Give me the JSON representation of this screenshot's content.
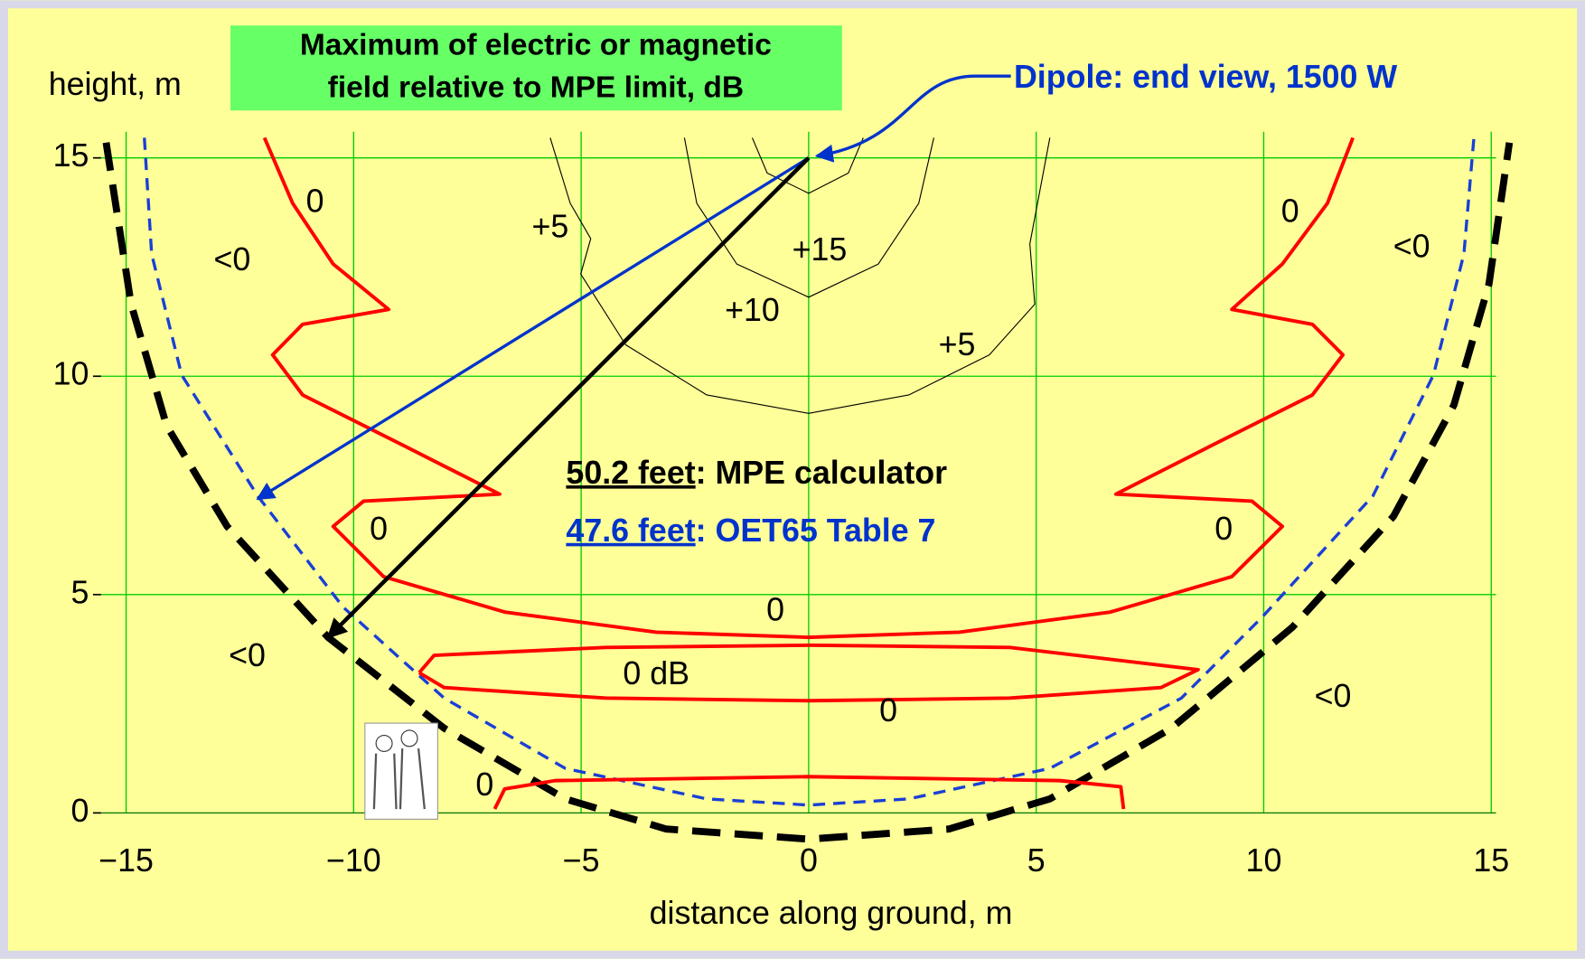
{
  "chart_data": {
    "type": "contour",
    "title": [
      "Maximum of electric or magnetic",
      "field relative to MPE limit, dB"
    ],
    "ylabel": "height, m",
    "xlabel": "distance along ground, m",
    "source_label": "Dipole: end view, 1500 W",
    "notes": [
      {
        "value": "50.2 feet",
        "text": ": MPE calculator",
        "color": "#000000"
      },
      {
        "value": "47.6 feet",
        "text": ": OET65 Table 7",
        "color": "#0033CC"
      }
    ],
    "xlim": [
      -15.55,
      15.55
    ],
    "ylim": [
      -0.7,
      15.6
    ],
    "xticks": [
      {
        "value": -15,
        "label": "−15"
      },
      {
        "value": -10,
        "label": "−10"
      },
      {
        "value": -5,
        "label": "−5"
      },
      0,
      5,
      10,
      15
    ],
    "yticks": [
      0,
      5,
      10,
      15
    ],
    "grid": true,
    "lines": [
      {
        "color": "#000000",
        "width": 7,
        "dash": "28 14",
        "x": [
          -15.44,
          -14.89,
          -14.11,
          -12.78,
          -10.56,
          -8.01,
          -5.35,
          -3.13,
          0,
          3.08,
          5.3,
          7.97,
          10.63,
          12.85,
          14.18,
          14.95,
          15.4
        ],
        "y": [
          15.35,
          11.65,
          8.87,
          6.56,
          4.02,
          1.94,
          0.32,
          -0.37,
          -0.6,
          -0.37,
          0.32,
          1.94,
          4.25,
          6.79,
          9.34,
          12.11,
          15.35
        ]
      },
      {
        "color": "#1a3fd6",
        "width": 3,
        "dash": "12 8",
        "x": [
          -14.6,
          -14.44,
          -13.78,
          -12.11,
          -10.23,
          -8.01,
          -5.35,
          -2.24,
          0,
          2.2,
          5.3,
          8.19,
          9.96,
          12.4,
          13.73,
          14.4,
          14.62
        ],
        "y": [
          15.46,
          12.8,
          10.03,
          7.26,
          4.71,
          2.63,
          1.02,
          0.32,
          0.18,
          0.32,
          1.02,
          2.63,
          4.48,
          7.26,
          10.03,
          12.8,
          15.46
        ]
      },
      {
        "color": "#ff0000",
        "width": 3.5,
        "dash": "none",
        "x": [
          -11.96,
          -11.34,
          -10.45,
          -9.23,
          -11.12,
          -11.78,
          -11.12,
          -8.9,
          -6.79,
          -9.78,
          -10.45,
          -9.34,
          -6.68,
          -3.35,
          0,
          3.31,
          6.63,
          9.3,
          10.41,
          9.74,
          6.75,
          8.85,
          11.07,
          11.74,
          11.07,
          9.3,
          10.41,
          11.4,
          11.96
        ],
        "y": [
          15.46,
          13.96,
          12.57,
          11.53,
          11.19,
          10.49,
          9.57,
          8.41,
          7.3,
          7.14,
          6.56,
          5.41,
          4.6,
          4.14,
          4.02,
          4.14,
          4.6,
          5.41,
          6.56,
          7.14,
          7.3,
          8.41,
          9.57,
          10.49,
          11.19,
          11.53,
          12.57,
          13.96,
          15.46
        ]
      },
      {
        "color": "#ff0000",
        "width": 3.5,
        "dash": "none",
        "x": [
          -8.56,
          -8.23,
          -4.46,
          0,
          4.42,
          8.56,
          7.74,
          4.42,
          0,
          -4.46,
          -8.01,
          -8.56
        ],
        "y": [
          3.21,
          3.61,
          3.79,
          3.84,
          3.79,
          3.28,
          2.87,
          2.63,
          2.57,
          2.63,
          2.87,
          3.21
        ]
      },
      {
        "color": "#ff0000",
        "width": 3.5,
        "dash": "none",
        "x": [
          -6.9,
          -6.68,
          -5.57,
          0,
          5.52,
          6.86,
          6.92
        ],
        "y": [
          0.09,
          0.55,
          0.74,
          0.83,
          0.74,
          0.6,
          0.09
        ]
      },
      {
        "color": "#000000",
        "width": 1,
        "dash": "none",
        "x": [
          -1.24,
          -0.91,
          0,
          0.87,
          1.2
        ],
        "y": [
          15.46,
          14.65,
          14.19,
          14.65,
          15.46
        ]
      },
      {
        "color": "#000000",
        "width": 1,
        "dash": "none",
        "x": [
          -2.73,
          -2.46,
          -1.58,
          0,
          1.53,
          2.42,
          2.75
        ],
        "y": [
          15.46,
          13.96,
          12.57,
          11.81,
          12.57,
          13.96,
          15.46
        ]
      },
      {
        "color": "#000000",
        "width": 1,
        "dash": "none",
        "x": [
          -5.68,
          -5.24,
          -4.79,
          -5.01,
          -4.02,
          -2.24,
          0,
          2.2,
          3.97,
          4.97,
          4.86,
          5.3
        ],
        "y": [
          15.46,
          13.96,
          13.15,
          12.34,
          10.72,
          9.57,
          9.15,
          9.57,
          10.49,
          11.65,
          13.03,
          15.46
        ]
      }
    ],
    "arrows": [
      {
        "color": "#0033CC",
        "from": [
          0,
          15
        ],
        "to": [
          -12.11,
          7.19
        ]
      },
      {
        "color": "#000000",
        "from": [
          0,
          15
        ],
        "to": [
          -10.56,
          4.02
        ]
      }
    ],
    "annotations": [
      {
        "text": "0",
        "x": -10.85,
        "y": 13.96
      },
      {
        "text": "<0",
        "x": -12.67,
        "y": 12.62
      },
      {
        "text": "+5",
        "x": -5.68,
        "y": 13.38
      },
      {
        "text": "+15",
        "x": 0.24,
        "y": 12.85
      },
      {
        "text": "+10",
        "x": -1.24,
        "y": 11.46
      },
      {
        "text": "+5",
        "x": 3.26,
        "y": 10.68
      },
      {
        "text": "0",
        "x": 10.58,
        "y": 13.73
      },
      {
        "text": "<0",
        "x": 13.25,
        "y": 12.92
      },
      {
        "text": "0",
        "x": -9.45,
        "y": 6.45
      },
      {
        "text": "0",
        "x": 9.12,
        "y": 6.45
      },
      {
        "text": "0",
        "x": -0.73,
        "y": 4.6
      },
      {
        "text": "<0",
        "x": -12.34,
        "y": 3.56
      },
      {
        "text": "0 dB",
        "x": -3.35,
        "y": 3.14
      },
      {
        "text": "0",
        "x": 1.75,
        "y": 2.29
      },
      {
        "text": "<0",
        "x": 11.52,
        "y": 2.63
      },
      {
        "text": "0",
        "x": -7.12,
        "y": 0.6
      }
    ]
  }
}
